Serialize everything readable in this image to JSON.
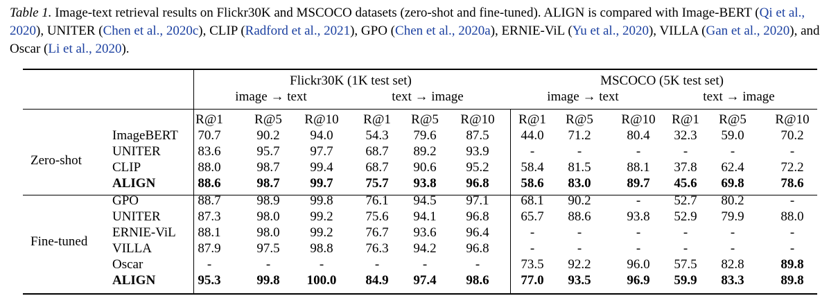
{
  "caption": {
    "lead": "Table 1.",
    "parts": [
      {
        "text": " Image-text retrieval results on Flickr30K and MSCOCO datasets (zero-shot and fine-tuned). ALIGN is compared with Image-BERT (",
        "cite": false
      },
      {
        "text": "Qi et al., 2020",
        "cite": true
      },
      {
        "text": "), UNITER (",
        "cite": false
      },
      {
        "text": "Chen et al., 2020c",
        "cite": true
      },
      {
        "text": "), CLIP (",
        "cite": false
      },
      {
        "text": "Radford et al., 2021",
        "cite": true
      },
      {
        "text": "), GPO (",
        "cite": false
      },
      {
        "text": "Chen et al., 2020a",
        "cite": true
      },
      {
        "text": "), ERNIE-ViL (",
        "cite": false
      },
      {
        "text": "Yu et al., 2020",
        "cite": true
      },
      {
        "text": "), VILLA (",
        "cite": false
      },
      {
        "text": "Gan et al., 2020",
        "cite": true
      },
      {
        "text": "), and Oscar (",
        "cite": false
      },
      {
        "text": "Li et al., 2020",
        "cite": true
      },
      {
        "text": ").",
        "cite": false
      }
    ]
  },
  "table": {
    "datasets": [
      "Flickr30K (1K test set)",
      "MSCOCO (5K test set)"
    ],
    "directions": [
      "image → text",
      "text → image",
      "image → text",
      "text → image"
    ],
    "metrics": [
      "R@1",
      "R@5",
      "R@10",
      "R@1",
      "R@5",
      "R@10",
      "R@1",
      "R@5",
      "R@10",
      "R@1",
      "R@5",
      "R@10"
    ],
    "groups": [
      {
        "label": "Zero-shot",
        "rows": [
          {
            "model": "ImageBERT",
            "bold": false,
            "values": [
              "70.7",
              "90.2",
              "94.0",
              "54.3",
              "79.6",
              "87.5",
              "44.0",
              "71.2",
              "80.4",
              "32.3",
              "59.0",
              "70.2"
            ]
          },
          {
            "model": "UNITER",
            "bold": false,
            "values": [
              "83.6",
              "95.7",
              "97.7",
              "68.7",
              "89.2",
              "93.9",
              "-",
              "-",
              "-",
              "-",
              "-",
              "-"
            ]
          },
          {
            "model": "CLIP",
            "bold": false,
            "values": [
              "88.0",
              "98.7",
              "99.4",
              "68.7",
              "90.6",
              "95.2",
              "58.4",
              "81.5",
              "88.1",
              "37.8",
              "62.4",
              "72.2"
            ]
          },
          {
            "model": "ALIGN",
            "bold": true,
            "values": [
              "88.6",
              "98.7",
              "99.7",
              "75.7",
              "93.8",
              "96.8",
              "58.6",
              "83.0",
              "89.7",
              "45.6",
              "69.8",
              "78.6"
            ]
          }
        ]
      },
      {
        "label": "Fine-tuned",
        "rows": [
          {
            "model": "GPO",
            "bold": false,
            "values": [
              "88.7",
              "98.9",
              "99.8",
              "76.1",
              "94.5",
              "97.1",
              "68.1",
              "90.2",
              "-",
              "52.7",
              "80.2",
              "-"
            ]
          },
          {
            "model": "UNITER",
            "bold": false,
            "values": [
              "87.3",
              "98.0",
              "99.2",
              "75.6",
              "94.1",
              "96.8",
              "65.7",
              "88.6",
              "93.8",
              "52.9",
              "79.9",
              "88.0"
            ]
          },
          {
            "model": "ERNIE-ViL",
            "bold": false,
            "values": [
              "88.1",
              "98.0",
              "99.2",
              "76.7",
              "93.6",
              "96.4",
              "-",
              "-",
              "-",
              "-",
              "-",
              "-"
            ]
          },
          {
            "model": "VILLA",
            "bold": false,
            "values": [
              "87.9",
              "97.5",
              "98.8",
              "76.3",
              "94.2",
              "96.8",
              "-",
              "-",
              "-",
              "-",
              "-",
              "-"
            ]
          },
          {
            "model": "Oscar",
            "bold": false,
            "values": [
              "-",
              "-",
              "-",
              "-",
              "-",
              "-",
              "73.5",
              "92.2",
              "96.0",
              "57.5",
              "82.8",
              "89.8"
            ],
            "bold_cells": [
              11
            ]
          },
          {
            "model": "ALIGN",
            "bold": true,
            "values": [
              "95.3",
              "99.8",
              "100.0",
              "84.9",
              "97.4",
              "98.6",
              "77.0",
              "93.5",
              "96.9",
              "59.9",
              "83.3",
              "89.8"
            ]
          }
        ]
      }
    ]
  }
}
